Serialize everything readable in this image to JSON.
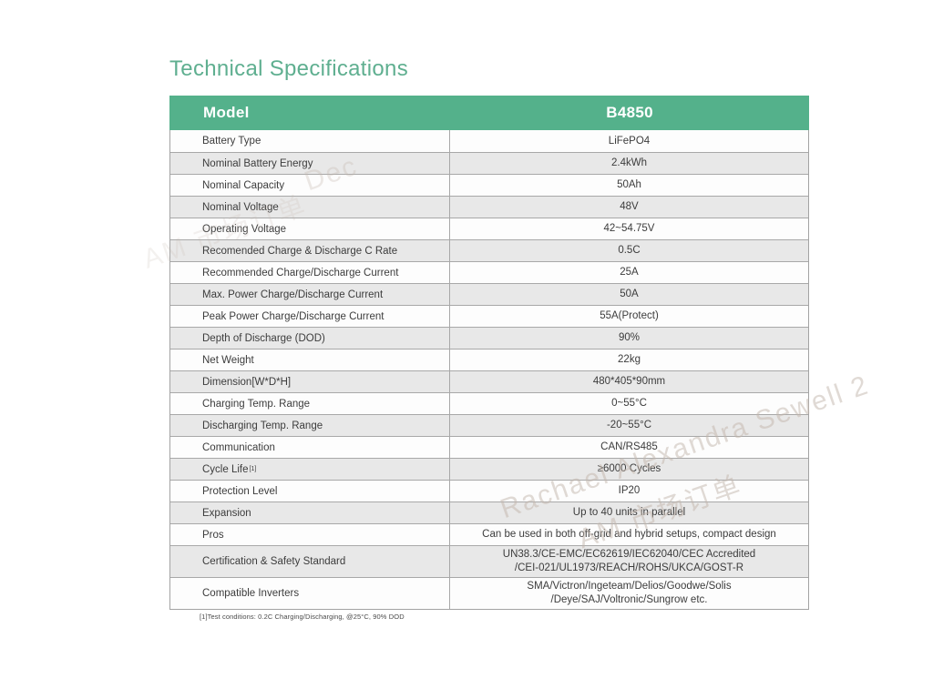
{
  "page_title": "Technical Specifications",
  "table": {
    "header": {
      "model_label": "Model",
      "model_value": "B4850"
    },
    "rows": [
      {
        "label": "Battery Type",
        "value": "LiFePO4"
      },
      {
        "label": "Nominal Battery Energy",
        "value": "2.4kWh"
      },
      {
        "label": "Nominal Capacity",
        "value": "50Ah"
      },
      {
        "label": "Nominal Voltage",
        "value": "48V"
      },
      {
        "label": "Operating Voltage",
        "value": "42~54.75V"
      },
      {
        "label": "Recomended Charge & Discharge C Rate",
        "value": "0.5C"
      },
      {
        "label": "Recommended Charge/Discharge Current",
        "value": "25A"
      },
      {
        "label": "Max. Power Charge/Discharge Current",
        "value": "50A"
      },
      {
        "label": "Peak Power Charge/Discharge Current",
        "value": "55A(Protect)"
      },
      {
        "label": "Depth of Discharge (DOD)",
        "value": "90%"
      },
      {
        "label": "Net Weight",
        "value": "22kg"
      },
      {
        "label": "Dimension[W*D*H]",
        "value": "480*405*90mm"
      },
      {
        "label": "Charging Temp. Range",
        "value": "0~55°C"
      },
      {
        "label": "Discharging Temp. Range",
        "value": "-20~55°C"
      },
      {
        "label": "Communication",
        "value": "CAN/RS485"
      },
      {
        "label": "Cycle Life",
        "sup": "[1]",
        "value": "≥6000 Cycles"
      },
      {
        "label": "Protection Level",
        "value": "IP20"
      },
      {
        "label": "Expansion",
        "value": "Up to 40 units in parallel"
      },
      {
        "label": "Pros",
        "value": "Can be used in both off-grid and hybrid setups, compact design"
      },
      {
        "label": "Certification & Safety Standard",
        "lines": [
          "UN38.3/CE-EMC/EC62619/IEC62040/CEC Accredited",
          "/CEI-021/UL1973/REACH/ROHS/UKCA/GOST-R"
        ]
      },
      {
        "label": "Compatible Inverters",
        "lines": [
          "SMA/Victron/Ingeteam/Delios/Goodwe/Solis",
          "/Deye/SAJ/Voltronic/Sungrow etc."
        ]
      }
    ]
  },
  "footnote": "[1]Test conditions: 0.2C Charging/Discharging, @25°C, 90% DOD",
  "watermark": {
    "line1": "Rachael Alexandra Sewell 2",
    "line2": "AM 市场订单",
    "fragment": "Dec"
  },
  "colors": {
    "header_bg": "#54B18B",
    "title_green": "#5FAF90",
    "row_alt_gray": "#E8E8E8",
    "border_gray": "#A8A8A8"
  }
}
